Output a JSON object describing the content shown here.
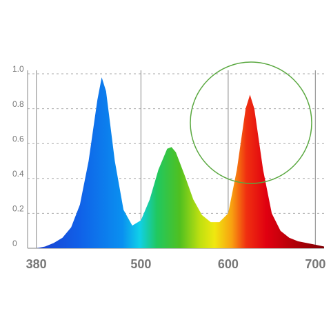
{
  "chart_data": {
    "type": "area",
    "x": [
      380,
      390,
      400,
      410,
      420,
      430,
      440,
      450,
      455,
      460,
      470,
      480,
      490,
      500,
      510,
      520,
      530,
      535,
      540,
      550,
      560,
      570,
      580,
      590,
      600,
      610,
      620,
      625,
      630,
      640,
      650,
      660,
      670,
      680,
      690,
      700,
      710
    ],
    "values": [
      0,
      0.01,
      0.03,
      0.06,
      0.12,
      0.25,
      0.5,
      0.85,
      0.98,
      0.9,
      0.5,
      0.22,
      0.13,
      0.16,
      0.28,
      0.45,
      0.57,
      0.58,
      0.55,
      0.42,
      0.28,
      0.19,
      0.15,
      0.15,
      0.2,
      0.45,
      0.8,
      0.88,
      0.8,
      0.45,
      0.2,
      0.1,
      0.06,
      0.04,
      0.03,
      0.02,
      0.01
    ],
    "xlim": [
      370,
      710
    ],
    "ylim": [
      0,
      1
    ],
    "xticks": [
      380,
      500,
      600,
      700
    ],
    "yticks": [
      0,
      0.2,
      0.4,
      0.6,
      0.8,
      {
        "value": 1,
        "label": "1.0"
      }
    ],
    "grid": true
  }
}
